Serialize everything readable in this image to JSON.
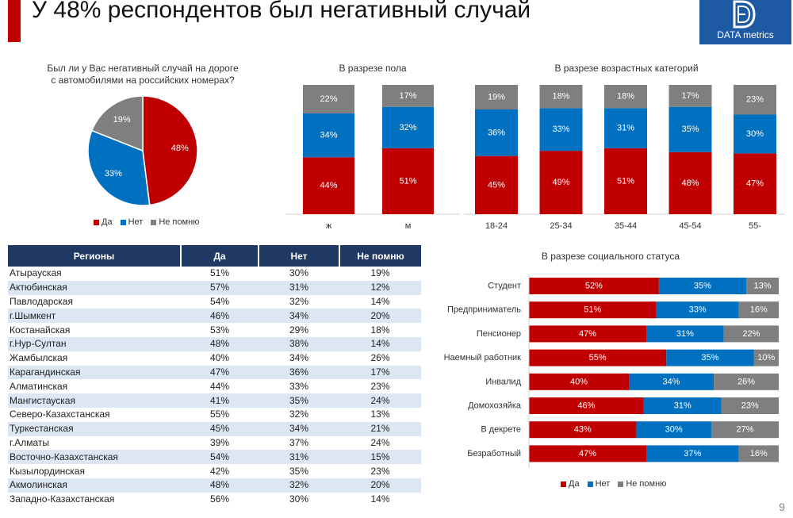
{
  "header": {
    "title": "У 48% респондентов был негативный случай",
    "logo_text": "DATA metrics"
  },
  "colors": {
    "yes": "#c00000",
    "no": "#0070c0",
    "dontknow": "#7f7f7f",
    "accent": "#c00000",
    "table_header": "#1f3864",
    "logo_bg": "#1d5aa3"
  },
  "legend": {
    "yes": "Да",
    "no": "Нет",
    "dontknow": "Не помню"
  },
  "chart_data": [
    {
      "id": "overall",
      "type": "pie",
      "title": "Был ли у Вас негативный случай на дороге с автомобилями на российских номерах?",
      "title_line1": "Был ли у Вас негативный случай на дороге",
      "title_line2": "с автомобилями на российских номерах?",
      "labels": [
        "Да",
        "Нет",
        "Не помню"
      ],
      "values": [
        48,
        33,
        19
      ]
    },
    {
      "id": "gender",
      "type": "bar",
      "stacked": true,
      "orientation": "vertical",
      "title": "В разрезе пола",
      "categories": [
        "ж",
        "м"
      ],
      "series": [
        {
          "name": "Да",
          "values": [
            44,
            51
          ]
        },
        {
          "name": "Нет",
          "values": [
            34,
            32
          ]
        },
        {
          "name": "Не помню",
          "values": [
            22,
            17
          ]
        }
      ]
    },
    {
      "id": "age",
      "type": "bar",
      "stacked": true,
      "orientation": "vertical",
      "title": "В разрезе возрастных категорий",
      "categories": [
        "18-24",
        "25-34",
        "35-44",
        "45-54",
        "55-"
      ],
      "series": [
        {
          "name": "Да",
          "values": [
            45,
            49,
            51,
            48,
            47
          ]
        },
        {
          "name": "Нет",
          "values": [
            36,
            33,
            31,
            35,
            30
          ]
        },
        {
          "name": "Не помню",
          "values": [
            19,
            18,
            18,
            17,
            23
          ]
        }
      ]
    },
    {
      "id": "social",
      "type": "bar",
      "stacked": true,
      "orientation": "horizontal",
      "title": "В разрезе социального статуса",
      "categories": [
        "Студент",
        "Предприниматель",
        "Пенсионер",
        "Наемный работник",
        "Инвалид",
        "Домохозяйка",
        "В декрете",
        "Безработный"
      ],
      "series": [
        {
          "name": "Да",
          "values": [
            52,
            51,
            47,
            55,
            40,
            46,
            43,
            47
          ]
        },
        {
          "name": "Нет",
          "values": [
            35,
            33,
            31,
            35,
            34,
            31,
            30,
            37
          ]
        },
        {
          "name": "Не помню",
          "values": [
            13,
            16,
            22,
            10,
            26,
            23,
            27,
            16
          ]
        }
      ]
    },
    {
      "id": "regions",
      "type": "table",
      "columns": [
        "Регионы",
        "Да",
        "Нет",
        "Не помню"
      ],
      "rows": [
        [
          "Атырауская",
          "51%",
          "30%",
          "19%"
        ],
        [
          "Актюбинская",
          "57%",
          "31%",
          "12%"
        ],
        [
          "Павлодарская",
          "54%",
          "32%",
          "14%"
        ],
        [
          "г.Шымкент",
          "46%",
          "34%",
          "20%"
        ],
        [
          "Костанайская",
          "53%",
          "29%",
          "18%"
        ],
        [
          "г.Нур-Султан",
          "48%",
          "38%",
          "14%"
        ],
        [
          "Жамбылская",
          "40%",
          "34%",
          "26%"
        ],
        [
          "Карагандинская",
          "47%",
          "36%",
          "17%"
        ],
        [
          "Алматинская",
          "44%",
          "33%",
          "23%"
        ],
        [
          "Мангистауская",
          "41%",
          "35%",
          "24%"
        ],
        [
          "Северо-Казахстанская",
          "55%",
          "32%",
          "13%"
        ],
        [
          "Туркестанская",
          "45%",
          "34%",
          "21%"
        ],
        [
          "г.Алматы",
          "39%",
          "37%",
          "24%"
        ],
        [
          "Восточно-Казахстанская",
          "54%",
          "31%",
          "15%"
        ],
        [
          "Кызылординская",
          "42%",
          "35%",
          "23%"
        ],
        [
          "Акмолинская",
          "48%",
          "32%",
          "20%"
        ],
        [
          "Западно-Казахстанская",
          "56%",
          "30%",
          "14%"
        ]
      ]
    }
  ],
  "footer": {
    "page_number": "9"
  }
}
